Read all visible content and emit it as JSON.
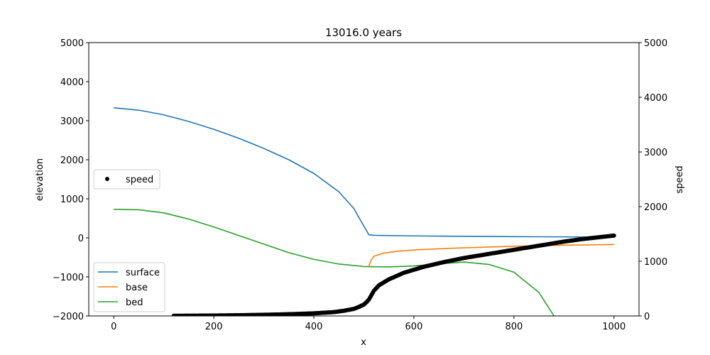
{
  "chart_data": {
    "type": "line",
    "title": "13016.0 years",
    "xlabel": "x",
    "ylabel_left": "elevation",
    "ylabel_right": "speed",
    "xlim": [
      -50,
      1050
    ],
    "ylim_left": [
      -2000,
      5000
    ],
    "ylim_right": [
      0,
      5000
    ],
    "xticks": [
      0,
      200,
      400,
      600,
      800,
      1000
    ],
    "yticks_left": [
      -2000,
      -1000,
      0,
      1000,
      2000,
      3000,
      4000,
      5000
    ],
    "yticks_right": [
      0,
      1000,
      2000,
      3000,
      4000,
      5000
    ],
    "xtick_labels": [
      "0",
      "200",
      "400",
      "600",
      "800",
      "1000"
    ],
    "ytick_labels_left": [
      "−2000",
      "−1000",
      "0",
      "1000",
      "2000",
      "3000",
      "4000",
      "5000"
    ],
    "ytick_labels_right": [
      "0",
      "1000",
      "2000",
      "3000",
      "4000",
      "5000"
    ],
    "grid": false,
    "legend_left_placement": "lower-left",
    "legend_right_placement": "center-left",
    "series": [
      {
        "name": "surface",
        "axis": "left",
        "color": "#1f77b4",
        "x": [
          0,
          50,
          100,
          150,
          200,
          250,
          300,
          350,
          400,
          450,
          480,
          500,
          510,
          520,
          600,
          700,
          800,
          900,
          1000
        ],
        "y": [
          3330,
          3270,
          3150,
          2980,
          2780,
          2550,
          2290,
          2000,
          1650,
          1180,
          750,
          300,
          80,
          65,
          50,
          40,
          30,
          25,
          20
        ]
      },
      {
        "name": "base",
        "axis": "left",
        "color": "#ff7f0e",
        "x": [
          510,
          515,
          520,
          540,
          570,
          600,
          650,
          700,
          750,
          800,
          850,
          900,
          950,
          1000
        ],
        "y": [
          -720,
          -560,
          -470,
          -390,
          -340,
          -310,
          -280,
          -255,
          -235,
          -215,
          -200,
          -188,
          -180,
          -170
        ]
      },
      {
        "name": "bed",
        "axis": "left",
        "color": "#2ca02c",
        "x": [
          0,
          50,
          100,
          150,
          200,
          250,
          300,
          350,
          400,
          450,
          500,
          550,
          600,
          650,
          700,
          750,
          800,
          850,
          880
        ],
        "y": [
          730,
          720,
          640,
          480,
          280,
          60,
          -160,
          -380,
          -550,
          -670,
          -735,
          -745,
          -720,
          -665,
          -620,
          -680,
          -880,
          -1400,
          -2000
        ]
      },
      {
        "name": "speed",
        "axis": "right",
        "color": "#000000",
        "marker": "point",
        "x": [
          120,
          160,
          200,
          240,
          280,
          320,
          360,
          400,
          440,
          460,
          480,
          490,
          500,
          505,
          510,
          515,
          520,
          530,
          550,
          580,
          620,
          660,
          700,
          740,
          780,
          820,
          860,
          900,
          940,
          980,
          1000
        ],
        "y": [
          3,
          5,
          8,
          12,
          18,
          25,
          35,
          48,
          70,
          95,
          130,
          165,
          210,
          250,
          300,
          380,
          460,
          560,
          670,
          790,
          900,
          985,
          1060,
          1120,
          1180,
          1240,
          1300,
          1360,
          1410,
          1450,
          1470
        ]
      }
    ]
  }
}
